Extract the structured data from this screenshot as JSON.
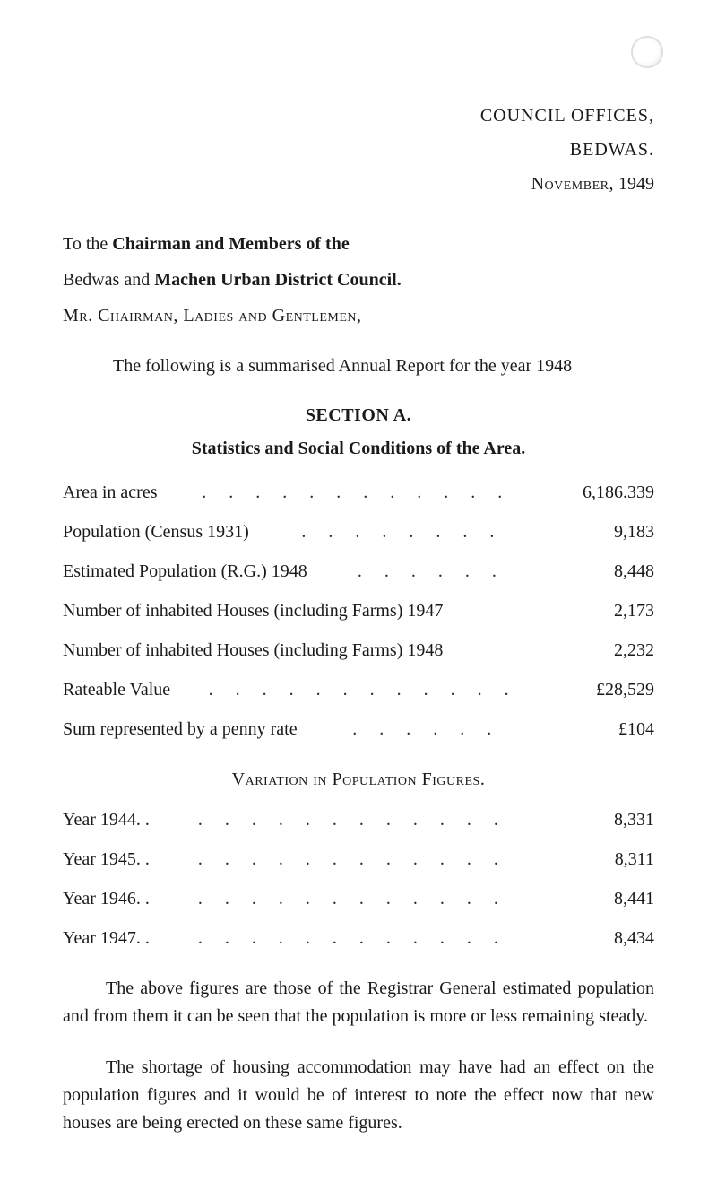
{
  "header": {
    "office_line": "COUNCIL OFFICES,",
    "place": "BEDWAS.",
    "date_prefix": "November,",
    "date_year": "1949"
  },
  "salutation": {
    "line1_prefix": "To the ",
    "line1_bold": "Chairman and Members of the",
    "line2_prefix": "Bedwas and ",
    "line2_bold": "Machen Urban District Council.",
    "line3": "Mr. Chairman, Ladies and Gentlemen,"
  },
  "intro": "The following is a summarised Annual Report for the year 1948",
  "section_a": {
    "title": "SECTION A.",
    "subtitle": "Statistics and Social Conditions of the Area."
  },
  "stats": [
    {
      "label": "Area in acres",
      "dots": ". .   . .   . .   . .   . .   . .",
      "value": "6,186.339"
    },
    {
      "label": "Population (Census 1931)",
      "dots": ". .   . .   . .   . .",
      "value": "9,183"
    },
    {
      "label": "Estimated Population (R.G.) 1948",
      "dots": ". .   . .   . .",
      "value": "8,448"
    },
    {
      "label": "Number of inhabited Houses (including Farms) 1947",
      "dots": "",
      "value": "2,173"
    },
    {
      "label": "Number of inhabited Houses (including Farms) 1948",
      "dots": "",
      "value": "2,232"
    },
    {
      "label": "Rateable Value",
      "dots": ". .   . .   . .   . .   . .   . .",
      "value": "£28,529"
    },
    {
      "label": "Sum represented by a penny rate",
      "dots": ". .   . .   . .",
      "value": "£104"
    }
  ],
  "variation": {
    "title": "Variation in Population Figures.",
    "rows": [
      {
        "label": "Year 1944. .",
        "dots": ". .   . .   . .   . .   . .   . .",
        "value": "8,331"
      },
      {
        "label": "Year 1945. .",
        "dots": ". .   . .   . .   . .   . .   . .",
        "value": "8,311"
      },
      {
        "label": "Year 1946. .",
        "dots": ". .   . .   . .   . .   . .   . .",
        "value": "8,441"
      },
      {
        "label": "Year 1947. .",
        "dots": ". .   . .   . .   . .   . .   . .",
        "value": "8,434"
      }
    ]
  },
  "paras": {
    "p1": "The above figures are those of the Registrar General estimated population and from them it can be seen that the population is more or less remaining steady.",
    "p2": "The shortage of housing accommodation may have had an effect on the population figures and it would be of interest to note the effect now that new houses are being erected on these same figures."
  }
}
